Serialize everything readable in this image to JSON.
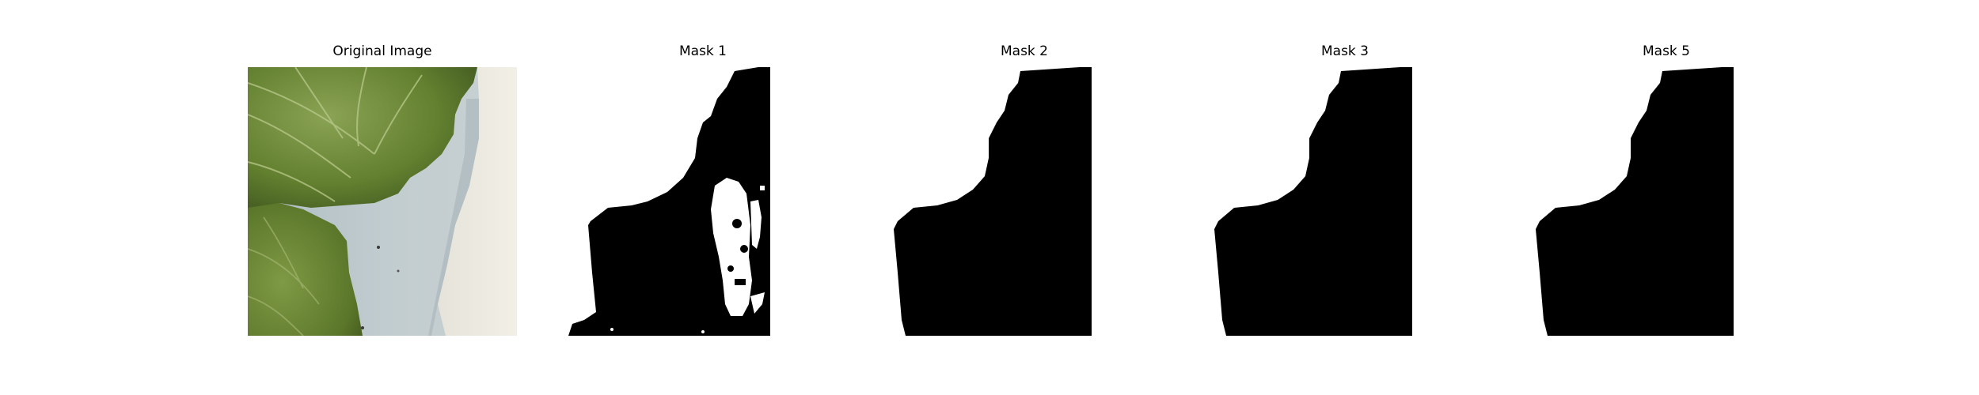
{
  "figure": {
    "panels": [
      {
        "title": "Original Image"
      },
      {
        "title": "Mask 1"
      },
      {
        "title": "Mask 2"
      },
      {
        "title": "Mask 3"
      },
      {
        "title": "Mask 5"
      }
    ]
  },
  "colors": {
    "mask_foreground": "#ffffff",
    "mask_background": "#000000",
    "leaf_dark": "#4c6327",
    "leaf_mid": "#6d8a3a",
    "leaf_light": "#8fa85a",
    "shadow_surface": "#b8c4c8",
    "bright_surface": "#ece9de"
  }
}
